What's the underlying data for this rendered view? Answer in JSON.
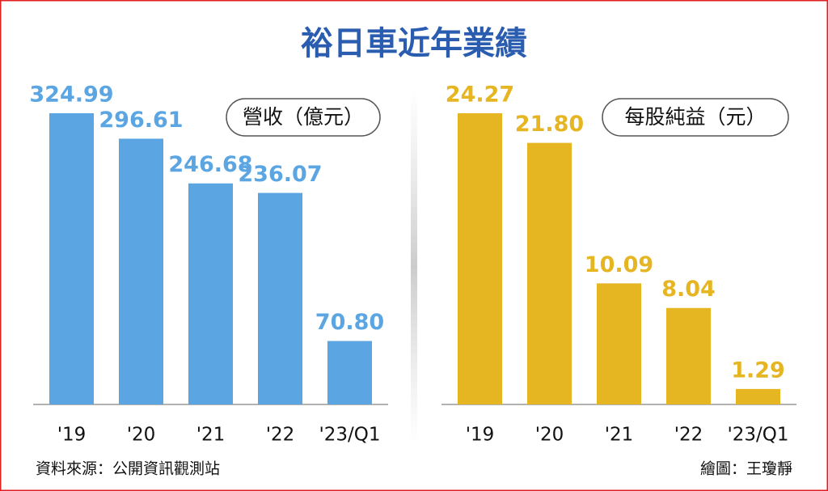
{
  "title": "裕日車近年業績",
  "source": "資料來源：公開資訊觀測站",
  "credit": "繪圖：王瓊靜",
  "chart_data": [
    {
      "type": "bar",
      "title": "營收（億元）",
      "categories": [
        "'19",
        "'20",
        "'21",
        "'22",
        "'23/Q1"
      ],
      "values": [
        324.99,
        296.61,
        246.68,
        236.07,
        70.8
      ],
      "value_labels": [
        "324.99",
        "296.61",
        "246.68",
        "236.07",
        "70.80"
      ],
      "color": "#5ba6e2"
    },
    {
      "type": "bar",
      "title": "每股純益（元）",
      "categories": [
        "'19",
        "'20",
        "'21",
        "'22",
        "'23/Q1"
      ],
      "values": [
        24.27,
        21.8,
        10.09,
        8.04,
        1.29
      ],
      "value_labels": [
        "24.27",
        "21.80",
        "10.09",
        "8.04",
        "1.29"
      ],
      "color": "#e5b522"
    }
  ]
}
